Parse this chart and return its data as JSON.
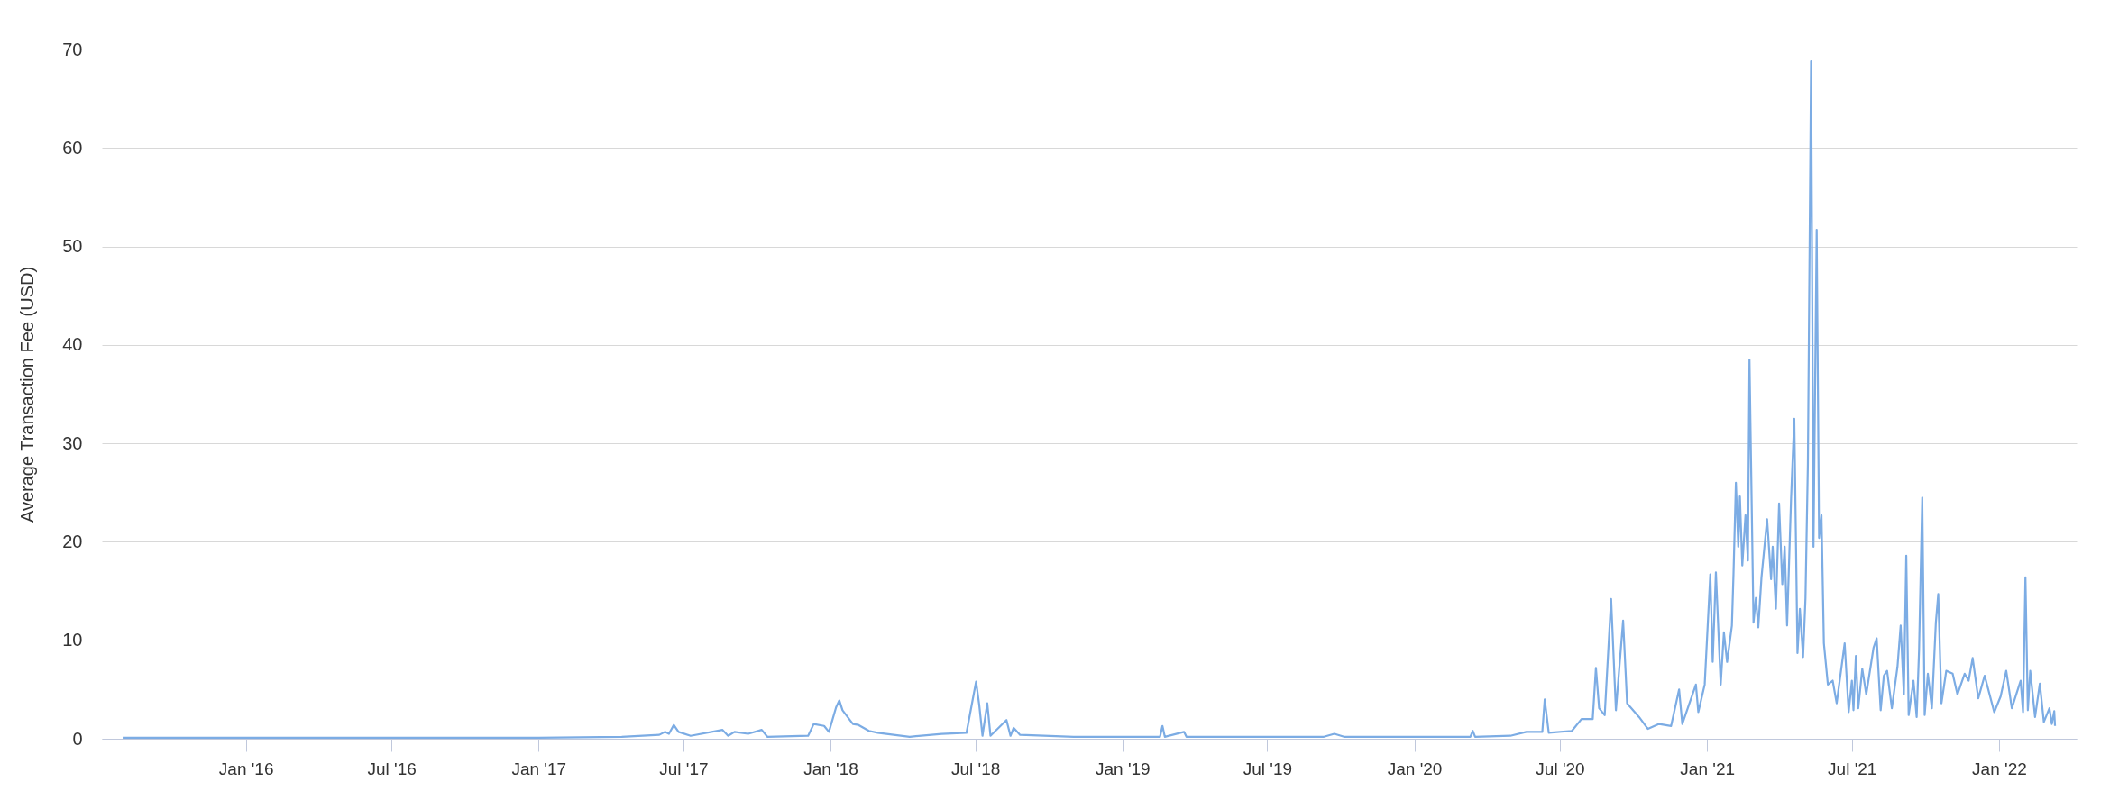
{
  "chart_data": {
    "type": "line",
    "ylabel": "Average Transaction Fee (USD)",
    "xlim": [
      "2015-07-05",
      "2022-04-08"
    ],
    "xticks": [
      {
        "value": "2016-01-01",
        "label": "Jan '16"
      },
      {
        "value": "2016-07-01",
        "label": "Jul '16"
      },
      {
        "value": "2017-01-01",
        "label": "Jan '17"
      },
      {
        "value": "2017-07-01",
        "label": "Jul '17"
      },
      {
        "value": "2018-01-01",
        "label": "Jan '18"
      },
      {
        "value": "2018-07-01",
        "label": "Jul '18"
      },
      {
        "value": "2019-01-01",
        "label": "Jan '19"
      },
      {
        "value": "2019-07-01",
        "label": "Jul '19"
      },
      {
        "value": "2020-01-01",
        "label": "Jan '20"
      },
      {
        "value": "2020-07-01",
        "label": "Jul '20"
      },
      {
        "value": "2021-01-01",
        "label": "Jan '21"
      },
      {
        "value": "2021-07-01",
        "label": "Jul '21"
      },
      {
        "value": "2022-01-01",
        "label": "Jan '22"
      }
    ],
    "ylim": [
      0,
      70
    ],
    "yticks": [
      0,
      10,
      20,
      30,
      40,
      50,
      60,
      70
    ],
    "grid": "y",
    "marker": "none",
    "line_style": "solid",
    "x": [
      "2015-07-31",
      "2016-06-01",
      "2017-01-01",
      "2017-04-15",
      "2017-06-01",
      "2017-06-08",
      "2017-06-13",
      "2017-06-19",
      "2017-06-25",
      "2017-07-10",
      "2017-08-19",
      "2017-08-26",
      "2017-09-03",
      "2017-09-20",
      "2017-10-07",
      "2017-10-14",
      "2017-12-04",
      "2017-12-11",
      "2017-12-24",
      "2017-12-30",
      "2018-01-08",
      "2018-01-12",
      "2018-01-16",
      "2018-01-29",
      "2018-02-05",
      "2018-02-18",
      "2018-03-01",
      "2018-04-10",
      "2018-05-20",
      "2018-06-20",
      "2018-07-02",
      "2018-07-06",
      "2018-07-10",
      "2018-07-16",
      "2018-07-20",
      "2018-08-09",
      "2018-08-14",
      "2018-08-18",
      "2018-08-26",
      "2018-11-01",
      "2019-02-17",
      "2019-02-20",
      "2019-02-23",
      "2019-03-19",
      "2019-03-22",
      "2019-09-10",
      "2019-09-23",
      "2019-10-05",
      "2020-03-11",
      "2020-03-14",
      "2020-03-17",
      "2020-04-30",
      "2020-05-20",
      "2020-06-09",
      "2020-06-12",
      "2020-06-17",
      "2020-07-16",
      "2020-07-28",
      "2020-08-11",
      "2020-08-15",
      "2020-08-19",
      "2020-08-26",
      "2020-09-03",
      "2020-09-09",
      "2020-09-18",
      "2020-09-23",
      "2020-10-08",
      "2020-10-19",
      "2020-11-02",
      "2020-11-17",
      "2020-11-27",
      "2020-12-01",
      "2020-12-18",
      "2020-12-21",
      "2020-12-29",
      "2021-01-05",
      "2021-01-08",
      "2021-01-12",
      "2021-01-18",
      "2021-01-22",
      "2021-01-26",
      "2021-02-01",
      "2021-02-03",
      "2021-02-06",
      "2021-02-09",
      "2021-02-11",
      "2021-02-14",
      "2021-02-18",
      "2021-02-21",
      "2021-02-23",
      "2021-02-28",
      "2021-03-03",
      "2021-03-06",
      "2021-03-10",
      "2021-03-17",
      "2021-03-22",
      "2021-03-24",
      "2021-03-28",
      "2021-04-01",
      "2021-04-05",
      "2021-04-08",
      "2021-04-11",
      "2021-04-16",
      "2021-04-20",
      "2021-04-24",
      "2021-04-27",
      "2021-05-01",
      "2021-05-04",
      "2021-05-07",
      "2021-05-11",
      "2021-05-14",
      "2021-05-18",
      "2021-05-21",
      "2021-05-24",
      "2021-05-27",
      "2021-06-01",
      "2021-06-07",
      "2021-06-12",
      "2021-06-22",
      "2021-06-27",
      "2021-07-01",
      "2021-07-03",
      "2021-07-06",
      "2021-07-09",
      "2021-07-14",
      "2021-07-19",
      "2021-07-28",
      "2021-08-01",
      "2021-08-06",
      "2021-08-10",
      "2021-08-14",
      "2021-08-20",
      "2021-08-27",
      "2021-08-31",
      "2021-09-04",
      "2021-09-07",
      "2021-09-10",
      "2021-09-16",
      "2021-09-20",
      "2021-09-23",
      "2021-09-27",
      "2021-09-30",
      "2021-10-04",
      "2021-10-09",
      "2021-10-14",
      "2021-10-17",
      "2021-10-21",
      "2021-10-27",
      "2021-11-04",
      "2021-11-10",
      "2021-11-19",
      "2021-11-24",
      "2021-11-29",
      "2021-12-06",
      "2021-12-14",
      "2021-12-26",
      "2022-01-03",
      "2022-01-10",
      "2022-01-17",
      "2022-01-28",
      "2022-01-31",
      "2022-02-03",
      "2022-02-06",
      "2022-02-09",
      "2022-02-15",
      "2022-02-21",
      "2022-02-26",
      "2022-03-05",
      "2022-03-08",
      "2022-03-11",
      "2022-03-12"
    ],
    "series": [
      {
        "color": "#7cace4",
        "values": [
          0.1,
          0.1,
          0.1,
          0.2,
          0.4,
          0.7,
          0.5,
          1.4,
          0.7,
          0.3,
          0.9,
          0.3,
          0.7,
          0.5,
          0.9,
          0.2,
          0.3,
          1.5,
          1.3,
          0.7,
          3.2,
          3.9,
          2.9,
          1.5,
          1.4,
          0.8,
          0.6,
          0.2,
          0.5,
          0.6,
          5.8,
          3.4,
          0.3,
          3.6,
          0.3,
          1.9,
          0.3,
          1.1,
          0.4,
          0.2,
          0.2,
          1.3,
          0.2,
          0.7,
          0.2,
          0.2,
          0.5,
          0.2,
          0.2,
          0.8,
          0.2,
          0.3,
          0.7,
          0.7,
          4.0,
          0.6,
          0.8,
          2.0,
          2.0,
          7.2,
          3.1,
          2.4,
          14.2,
          2.9,
          12.0,
          3.6,
          2.2,
          1.0,
          1.5,
          1.3,
          5.0,
          1.5,
          5.5,
          2.7,
          5.5,
          16.7,
          7.8,
          16.9,
          5.5,
          10.8,
          7.8,
          11.5,
          16.7,
          26.0,
          19.5,
          24.6,
          17.6,
          22.7,
          18.1,
          38.5,
          11.8,
          14.3,
          11.3,
          16.4,
          22.3,
          16.2,
          19.5,
          13.2,
          23.9,
          15.7,
          19.5,
          11.5,
          24.4,
          32.5,
          8.7,
          13.2,
          8.3,
          14.3,
          27.9,
          68.8,
          19.5,
          51.7,
          20.4,
          22.7,
          9.7,
          5.5,
          5.9,
          3.6,
          9.7,
          2.7,
          5.9,
          2.9,
          8.4,
          3.1,
          7.1,
          4.5,
          9.2,
          10.2,
          2.9,
          6.4,
          6.9,
          3.1,
          7.3,
          11.5,
          4.5,
          18.6,
          2.4,
          5.9,
          2.2,
          9.0,
          24.5,
          2.4,
          6.6,
          3.1,
          11.8,
          14.7,
          3.6,
          6.9,
          6.6,
          4.5,
          6.6,
          5.9,
          8.2,
          4.1,
          6.4,
          2.7,
          4.3,
          6.9,
          3.1,
          5.9,
          2.7,
          16.4,
          2.9,
          6.9,
          2.2,
          5.6,
          1.7,
          3.1,
          1.5,
          2.8,
          1.3
        ]
      }
    ]
  }
}
